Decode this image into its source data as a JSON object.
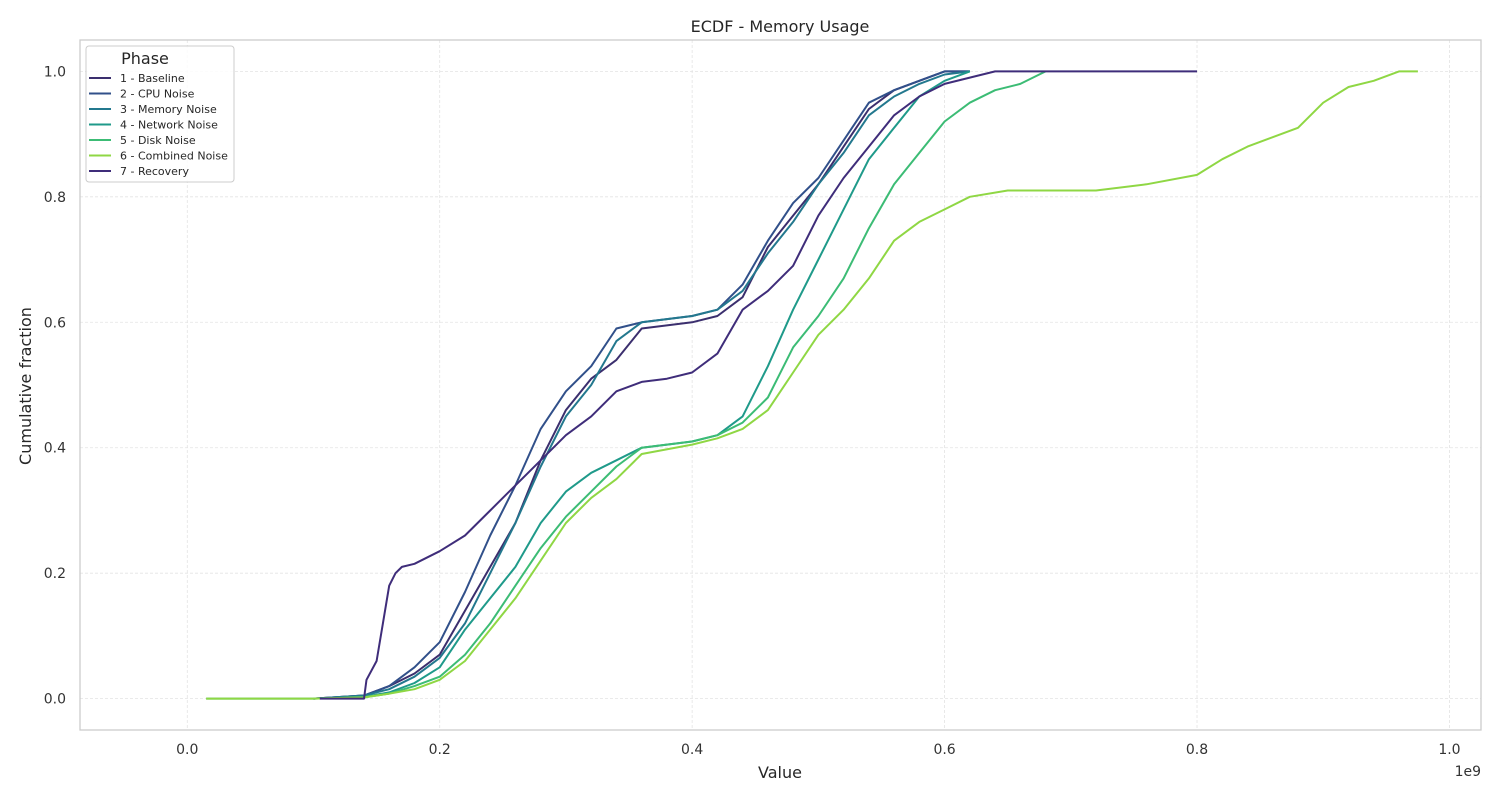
{
  "chart_data": {
    "type": "line",
    "title": "ECDF - Memory Usage",
    "xlabel": "Value",
    "ylabel": "Cumulative fraction",
    "x_offset_label": "1e9",
    "xlim": [
      -0.085,
      1.025
    ],
    "ylim": [
      -0.05,
      1.05
    ],
    "x_ticks": [
      0.0,
      0.2,
      0.4,
      0.6,
      0.8,
      1.0
    ],
    "x_tick_labels": [
      "0.0",
      "0.2",
      "0.4",
      "0.6",
      "0.8",
      "1.0"
    ],
    "y_ticks": [
      0.0,
      0.2,
      0.4,
      0.6,
      0.8,
      1.0
    ],
    "y_tick_labels": [
      "0.0",
      "0.2",
      "0.4",
      "0.6",
      "0.8",
      "1.0"
    ],
    "grid": true,
    "legend": {
      "title": "Phase",
      "placement": "top-left"
    },
    "series": [
      {
        "name": "1 - Baseline",
        "color": "#3b2f6e",
        "points": [
          [
            0.1,
            0.0
          ],
          [
            0.14,
            0.005
          ],
          [
            0.16,
            0.02
          ],
          [
            0.18,
            0.04
          ],
          [
            0.2,
            0.07
          ],
          [
            0.22,
            0.14
          ],
          [
            0.24,
            0.21
          ],
          [
            0.26,
            0.28
          ],
          [
            0.28,
            0.38
          ],
          [
            0.3,
            0.46
          ],
          [
            0.32,
            0.51
          ],
          [
            0.34,
            0.54
          ],
          [
            0.36,
            0.59
          ],
          [
            0.4,
            0.6
          ],
          [
            0.42,
            0.61
          ],
          [
            0.44,
            0.64
          ],
          [
            0.46,
            0.72
          ],
          [
            0.48,
            0.77
          ],
          [
            0.5,
            0.82
          ],
          [
            0.52,
            0.88
          ],
          [
            0.54,
            0.94
          ],
          [
            0.56,
            0.97
          ],
          [
            0.58,
            0.985
          ],
          [
            0.6,
            1.0
          ],
          [
            0.62,
            1.0
          ]
        ]
      },
      {
        "name": "2 - CPU Noise",
        "color": "#31508a",
        "points": [
          [
            0.1,
            0.0
          ],
          [
            0.14,
            0.005
          ],
          [
            0.16,
            0.02
          ],
          [
            0.18,
            0.05
          ],
          [
            0.2,
            0.09
          ],
          [
            0.22,
            0.17
          ],
          [
            0.24,
            0.26
          ],
          [
            0.26,
            0.34
          ],
          [
            0.28,
            0.43
          ],
          [
            0.3,
            0.49
          ],
          [
            0.32,
            0.53
          ],
          [
            0.34,
            0.59
          ],
          [
            0.36,
            0.6
          ],
          [
            0.4,
            0.61
          ],
          [
            0.42,
            0.62
          ],
          [
            0.44,
            0.66
          ],
          [
            0.46,
            0.73
          ],
          [
            0.48,
            0.79
          ],
          [
            0.5,
            0.83
          ],
          [
            0.52,
            0.89
          ],
          [
            0.54,
            0.95
          ],
          [
            0.56,
            0.97
          ],
          [
            0.58,
            0.985
          ],
          [
            0.6,
            1.0
          ],
          [
            0.62,
            1.0
          ]
        ]
      },
      {
        "name": "3 - Memory Noise",
        "color": "#23788e",
        "points": [
          [
            0.1,
            0.0
          ],
          [
            0.14,
            0.005
          ],
          [
            0.16,
            0.015
          ],
          [
            0.18,
            0.035
          ],
          [
            0.2,
            0.065
          ],
          [
            0.22,
            0.12
          ],
          [
            0.24,
            0.2
          ],
          [
            0.26,
            0.28
          ],
          [
            0.28,
            0.37
          ],
          [
            0.3,
            0.45
          ],
          [
            0.32,
            0.5
          ],
          [
            0.34,
            0.57
          ],
          [
            0.36,
            0.6
          ],
          [
            0.4,
            0.61
          ],
          [
            0.42,
            0.62
          ],
          [
            0.44,
            0.65
          ],
          [
            0.46,
            0.71
          ],
          [
            0.48,
            0.76
          ],
          [
            0.5,
            0.82
          ],
          [
            0.52,
            0.87
          ],
          [
            0.54,
            0.93
          ],
          [
            0.56,
            0.96
          ],
          [
            0.58,
            0.98
          ],
          [
            0.6,
            0.995
          ],
          [
            0.62,
            1.0
          ]
        ]
      },
      {
        "name": "4 - Network Noise",
        "color": "#1f9a8a",
        "points": [
          [
            0.1,
            0.0
          ],
          [
            0.14,
            0.003
          ],
          [
            0.16,
            0.01
          ],
          [
            0.18,
            0.025
          ],
          [
            0.2,
            0.05
          ],
          [
            0.22,
            0.11
          ],
          [
            0.24,
            0.16
          ],
          [
            0.26,
            0.21
          ],
          [
            0.28,
            0.28
          ],
          [
            0.3,
            0.33
          ],
          [
            0.32,
            0.36
          ],
          [
            0.34,
            0.38
          ],
          [
            0.36,
            0.4
          ],
          [
            0.4,
            0.41
          ],
          [
            0.42,
            0.42
          ],
          [
            0.44,
            0.45
          ],
          [
            0.46,
            0.53
          ],
          [
            0.48,
            0.62
          ],
          [
            0.5,
            0.7
          ],
          [
            0.52,
            0.78
          ],
          [
            0.54,
            0.86
          ],
          [
            0.56,
            0.91
          ],
          [
            0.58,
            0.96
          ],
          [
            0.6,
            0.985
          ],
          [
            0.62,
            1.0
          ]
        ]
      },
      {
        "name": "5 - Disk Noise",
        "color": "#3cbc75",
        "points": [
          [
            0.015,
            0.0
          ],
          [
            0.1,
            0.0
          ],
          [
            0.14,
            0.002
          ],
          [
            0.16,
            0.008
          ],
          [
            0.18,
            0.02
          ],
          [
            0.2,
            0.035
          ],
          [
            0.22,
            0.07
          ],
          [
            0.24,
            0.12
          ],
          [
            0.26,
            0.18
          ],
          [
            0.28,
            0.24
          ],
          [
            0.3,
            0.29
          ],
          [
            0.32,
            0.33
          ],
          [
            0.34,
            0.37
          ],
          [
            0.36,
            0.4
          ],
          [
            0.4,
            0.41
          ],
          [
            0.42,
            0.42
          ],
          [
            0.44,
            0.44
          ],
          [
            0.46,
            0.48
          ],
          [
            0.48,
            0.56
          ],
          [
            0.5,
            0.61
          ],
          [
            0.52,
            0.67
          ],
          [
            0.54,
            0.75
          ],
          [
            0.56,
            0.82
          ],
          [
            0.58,
            0.87
          ],
          [
            0.6,
            0.92
          ],
          [
            0.62,
            0.95
          ],
          [
            0.64,
            0.97
          ],
          [
            0.66,
            0.98
          ],
          [
            0.68,
            1.0
          ]
        ]
      },
      {
        "name": "6 - Combined Noise",
        "color": "#8fd744",
        "points": [
          [
            0.015,
            0.0
          ],
          [
            0.1,
            0.0
          ],
          [
            0.14,
            0.002
          ],
          [
            0.16,
            0.008
          ],
          [
            0.18,
            0.015
          ],
          [
            0.2,
            0.03
          ],
          [
            0.22,
            0.06
          ],
          [
            0.24,
            0.11
          ],
          [
            0.26,
            0.16
          ],
          [
            0.28,
            0.22
          ],
          [
            0.3,
            0.28
          ],
          [
            0.32,
            0.32
          ],
          [
            0.34,
            0.35
          ],
          [
            0.36,
            0.39
          ],
          [
            0.4,
            0.405
          ],
          [
            0.42,
            0.415
          ],
          [
            0.44,
            0.43
          ],
          [
            0.46,
            0.46
          ],
          [
            0.48,
            0.52
          ],
          [
            0.5,
            0.58
          ],
          [
            0.52,
            0.62
          ],
          [
            0.54,
            0.67
          ],
          [
            0.56,
            0.73
          ],
          [
            0.58,
            0.76
          ],
          [
            0.6,
            0.78
          ],
          [
            0.62,
            0.8
          ],
          [
            0.65,
            0.81
          ],
          [
            0.72,
            0.81
          ],
          [
            0.76,
            0.82
          ],
          [
            0.8,
            0.835
          ],
          [
            0.82,
            0.86
          ],
          [
            0.84,
            0.88
          ],
          [
            0.88,
            0.91
          ],
          [
            0.9,
            0.95
          ],
          [
            0.92,
            0.975
          ],
          [
            0.94,
            0.985
          ],
          [
            0.96,
            1.0
          ],
          [
            0.975,
            1.0
          ]
        ]
      },
      {
        "name": "7 - Recovery",
        "color": "#3f2d7a",
        "points": [
          [
            0.105,
            0.0
          ],
          [
            0.14,
            0.0
          ],
          [
            0.142,
            0.03
          ],
          [
            0.15,
            0.06
          ],
          [
            0.155,
            0.12
          ],
          [
            0.16,
            0.18
          ],
          [
            0.165,
            0.2
          ],
          [
            0.17,
            0.21
          ],
          [
            0.18,
            0.215
          ],
          [
            0.2,
            0.235
          ],
          [
            0.22,
            0.26
          ],
          [
            0.24,
            0.3
          ],
          [
            0.26,
            0.34
          ],
          [
            0.28,
            0.38
          ],
          [
            0.3,
            0.42
          ],
          [
            0.32,
            0.45
          ],
          [
            0.34,
            0.49
          ],
          [
            0.36,
            0.505
          ],
          [
            0.38,
            0.51
          ],
          [
            0.4,
            0.52
          ],
          [
            0.42,
            0.55
          ],
          [
            0.44,
            0.62
          ],
          [
            0.46,
            0.65
          ],
          [
            0.48,
            0.69
          ],
          [
            0.5,
            0.77
          ],
          [
            0.52,
            0.83
          ],
          [
            0.54,
            0.88
          ],
          [
            0.56,
            0.93
          ],
          [
            0.58,
            0.96
          ],
          [
            0.6,
            0.98
          ],
          [
            0.62,
            0.99
          ],
          [
            0.64,
            1.0
          ],
          [
            0.8,
            1.0
          ]
        ]
      }
    ]
  }
}
